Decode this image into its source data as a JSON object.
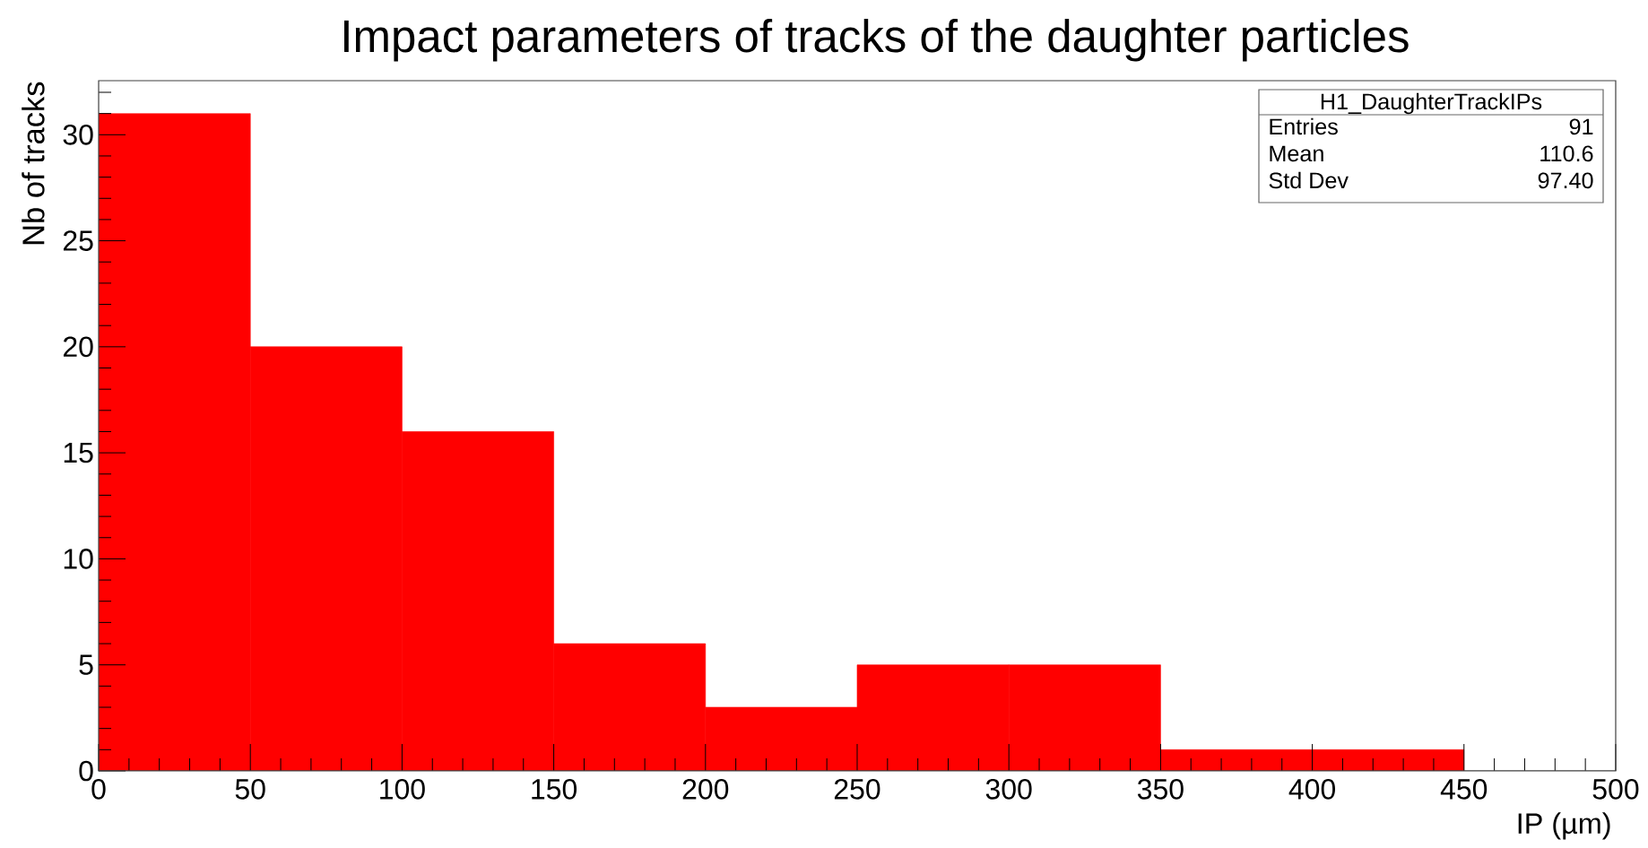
{
  "chart_data": {
    "type": "histogram",
    "title": "Impact parameters of tracks of the daughter particles",
    "xlabel": "IP (µm)",
    "ylabel": "Nb of tracks",
    "bins": [
      0,
      50,
      100,
      150,
      200,
      250,
      300,
      350,
      400,
      450
    ],
    "values": [
      31,
      20,
      16,
      6,
      3,
      5,
      5,
      1,
      1
    ],
    "color": "#ff0000",
    "xlim": [
      0,
      500
    ],
    "ylim": [
      0,
      32.55
    ],
    "xticks": [
      0,
      50,
      100,
      150,
      200,
      250,
      300,
      350,
      400,
      450,
      500
    ],
    "yticks": [
      0,
      5,
      10,
      15,
      20,
      25,
      30
    ],
    "annotations": [
      "H1_DaughterTrackIPs",
      "Entries",
      "91",
      "Mean",
      "110.6",
      "Std Dev",
      "97.40"
    ]
  }
}
